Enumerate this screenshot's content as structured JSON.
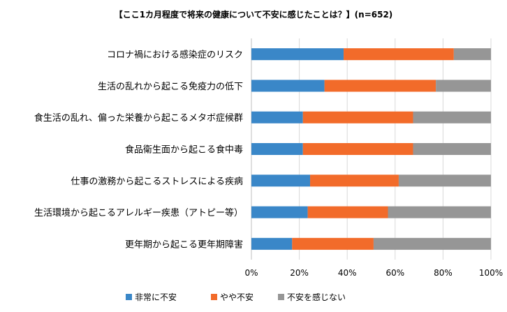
{
  "chart_data": {
    "type": "bar",
    "orientation": "horizontal",
    "stacked": true,
    "percent_stacked": true,
    "title": "【ここ1カ月程度で将来の健康について不安に感じたことは？】(n=652)",
    "categories": [
      "コロナ禍における感染症のリスク",
      "生活の乱れから起こる免疫力の低下",
      "食生活の乱れ、偏った栄養から起こるメタボ症候群",
      "食品衛生面から起こる食中毒",
      "仕事の激務から起こるストレスによる疾病",
      "生活環境から起こるアレルギー疾患（アトピー等）",
      "更年期から起こる更年期障害"
    ],
    "series": [
      {
        "name": "非常に不安",
        "color": "#3a87c8",
        "values": [
          38.5,
          30.5,
          21.5,
          21.5,
          24.5,
          23.5,
          17.0
        ]
      },
      {
        "name": "やや不安",
        "color": "#f26b2a",
        "values": [
          46.0,
          46.5,
          46.0,
          46.0,
          37.0,
          33.5,
          34.0
        ]
      },
      {
        "name": "不安を感じない",
        "color": "#969696",
        "values": [
          15.5,
          23.0,
          32.5,
          32.5,
          38.5,
          43.0,
          49.0
        ]
      }
    ],
    "x_ticks": [
      "0%",
      "20%",
      "40%",
      "60%",
      "80%",
      "100%"
    ],
    "xlim": [
      0,
      100
    ],
    "grid": "vertical",
    "legend_position": "bottom"
  }
}
